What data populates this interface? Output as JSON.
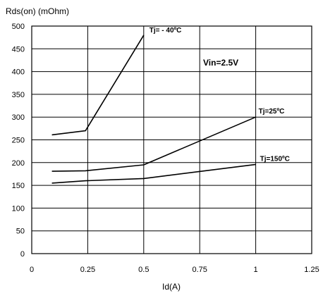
{
  "chart_data": {
    "type": "line",
    "title": "",
    "xlabel": "Id(A)",
    "ylabel": "Rds(on) (mOhm)",
    "xlim": [
      0,
      1.25
    ],
    "ylim": [
      0,
      500
    ],
    "xticks": [
      "0",
      "0.25",
      "0.5",
      "0.75",
      "1",
      "1.25"
    ],
    "yticks": [
      "0",
      "50",
      "100",
      "150",
      "200",
      "250",
      "300",
      "350",
      "400",
      "450",
      "500"
    ],
    "grid": true,
    "annotation": "Vin=2.5V",
    "series": [
      {
        "name": "Tj= - 40ºC",
        "points": [
          [
            0.09,
            261
          ],
          [
            0.24,
            270
          ],
          [
            0.5,
            480
          ]
        ]
      },
      {
        "name": "Tj=25ºC",
        "points": [
          [
            0.09,
            181
          ],
          [
            0.24,
            182
          ],
          [
            0.5,
            195
          ],
          [
            1.0,
            300
          ]
        ]
      },
      {
        "name": "Tj=150ºC",
        "points": [
          [
            0.09,
            155
          ],
          [
            0.24,
            160
          ],
          [
            0.5,
            165
          ],
          [
            1.0,
            196
          ]
        ]
      }
    ]
  }
}
